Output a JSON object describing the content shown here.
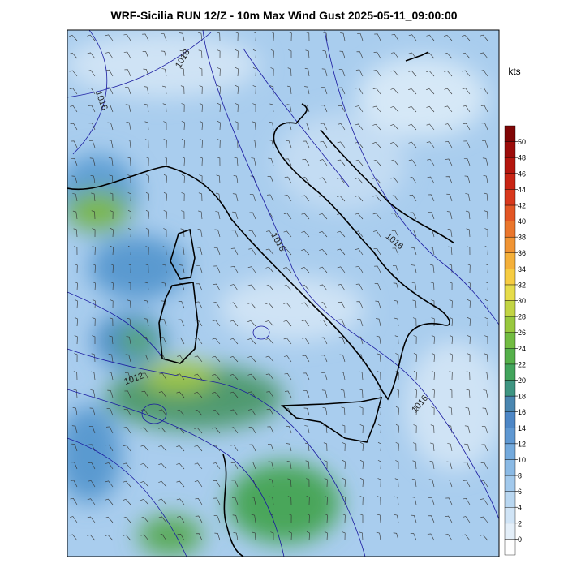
{
  "header": {
    "title": "WRF-Sicilia RUN 12/Z - 10m Max Wind Gust 2025-05-11_09:00:00"
  },
  "colorbar": {
    "unit": "kts",
    "ticks": [
      0,
      2,
      4,
      6,
      8,
      10,
      12,
      14,
      16,
      18,
      20,
      22,
      24,
      26,
      28,
      30,
      32,
      34,
      36,
      38,
      40,
      42,
      44,
      46,
      48,
      50
    ]
  },
  "map": {
    "contour_labels": [
      "1018",
      "1016",
      "1016",
      "1016",
      "1012",
      "1016"
    ]
  }
}
